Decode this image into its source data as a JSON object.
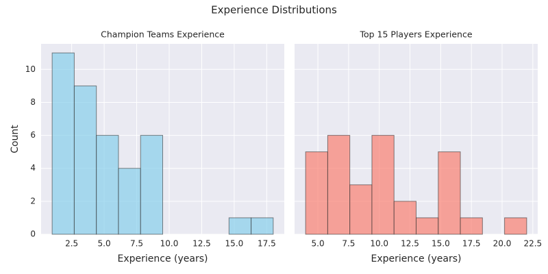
{
  "title": "Experience Distributions",
  "chart_data": [
    {
      "type": "histogram",
      "title": "Champion Teams Experience",
      "xlabel": "Experience (years)",
      "ylabel": "Count",
      "bins": [
        1,
        2.7,
        4.4,
        6.1,
        7.8,
        9.5,
        11.2,
        12.9,
        14.6,
        16.3,
        18
      ],
      "values": [
        11,
        9,
        6,
        4,
        6,
        0,
        0,
        0,
        1,
        1
      ],
      "color": "#87ceeb",
      "edgecolor": "#333333",
      "alpha": 0.7,
      "xlim": [
        0.15,
        18.85
      ],
      "ylim": [
        0,
        11.55
      ],
      "xticks": [
        {
          "value": 2.5,
          "label": "2.5"
        },
        {
          "value": 5,
          "label": "5.0"
        },
        {
          "value": 7.5,
          "label": "7.5"
        },
        {
          "value": 10,
          "label": "10.0"
        },
        {
          "value": 12.5,
          "label": "12.5"
        },
        {
          "value": 15,
          "label": "15.0"
        },
        {
          "value": 17.5,
          "label": "17.5"
        }
      ],
      "yticks": [
        0,
        2,
        4,
        6,
        8,
        10
      ],
      "grid": true
    },
    {
      "type": "histogram",
      "title": "Top 15 Players Experience",
      "xlabel": "Experience (years)",
      "bins": [
        4,
        5.8,
        7.6,
        9.4,
        11.2,
        13,
        14.8,
        16.6,
        18.4,
        20.2,
        22
      ],
      "values": [
        5,
        6,
        3,
        6,
        2,
        1,
        5,
        1,
        0,
        1
      ],
      "color": "#fa8072",
      "edgecolor": "#333333",
      "alpha": 0.7,
      "xlim": [
        3.1,
        22.9
      ],
      "ylim": [
        0,
        11.55
      ],
      "xticks": [
        {
          "value": 5,
          "label": "5.0"
        },
        {
          "value": 7.5,
          "label": "7.5"
        },
        {
          "value": 10,
          "label": "10.0"
        },
        {
          "value": 12.5,
          "label": "12.5"
        },
        {
          "value": 15,
          "label": "15.0"
        },
        {
          "value": 17.5,
          "label": "17.5"
        },
        {
          "value": 20,
          "label": "20.0"
        },
        {
          "value": 22.5,
          "label": "22.5"
        }
      ],
      "yticks": [
        0,
        2,
        4,
        6,
        8,
        10
      ],
      "grid": true
    }
  ]
}
